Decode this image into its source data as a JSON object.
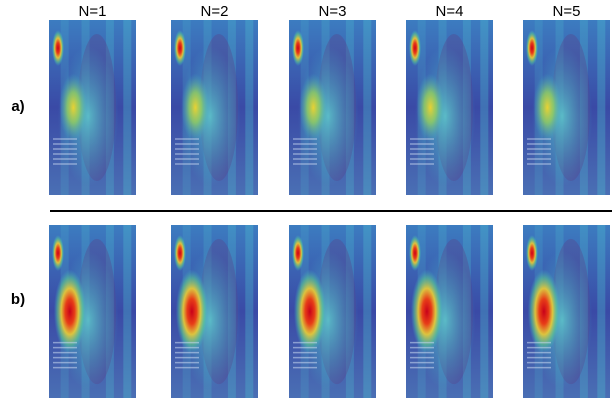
{
  "columns": [
    "N=1",
    "N=2",
    "N=3",
    "N=4",
    "N=5"
  ],
  "rows": [
    "a)",
    "b)"
  ]
}
